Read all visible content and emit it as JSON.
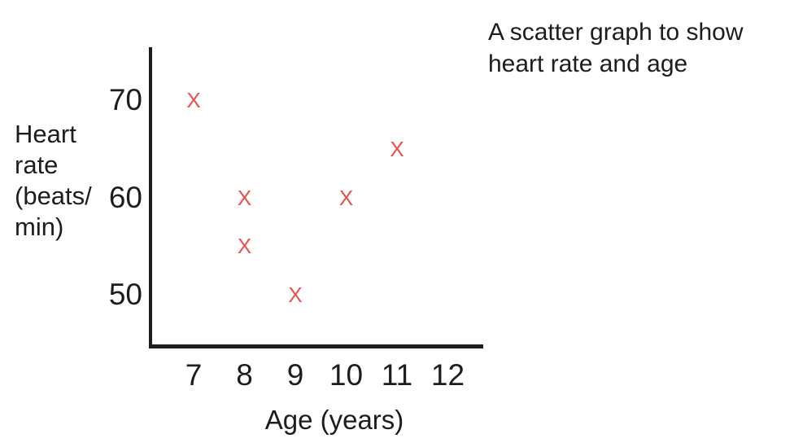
{
  "title": {
    "line1": "A scatter graph to show",
    "line2": "heart rate and age"
  },
  "y_axis": {
    "lines": [
      "Heart",
      "rate",
      "(beats/",
      "min)"
    ]
  },
  "x_axis": {
    "label": "Age (years)"
  },
  "chart_data": {
    "type": "scatter",
    "title": "A scatter graph to show heart rate and age",
    "xlabel": "Age (years)",
    "ylabel": "Heart rate (beats/min)",
    "x_ticks": [
      7,
      8,
      9,
      10,
      11,
      12
    ],
    "y_ticks": [
      70,
      60,
      50
    ],
    "x_range_shown": [
      7,
      12
    ],
    "y_range_shown": [
      50,
      70
    ],
    "grid": false,
    "legend": "none",
    "marker_glyph": "X",
    "points": [
      {
        "x": 7,
        "y": 70
      },
      {
        "x": 8,
        "y": 60
      },
      {
        "x": 8,
        "y": 55
      },
      {
        "x": 9,
        "y": 50
      },
      {
        "x": 10,
        "y": 60
      },
      {
        "x": 11,
        "y": 65
      }
    ]
  },
  "colors": {
    "background": "#ffffff",
    "text": "#1d1d1b",
    "axis": "#1d1d1b",
    "marker": "#e8514d"
  }
}
